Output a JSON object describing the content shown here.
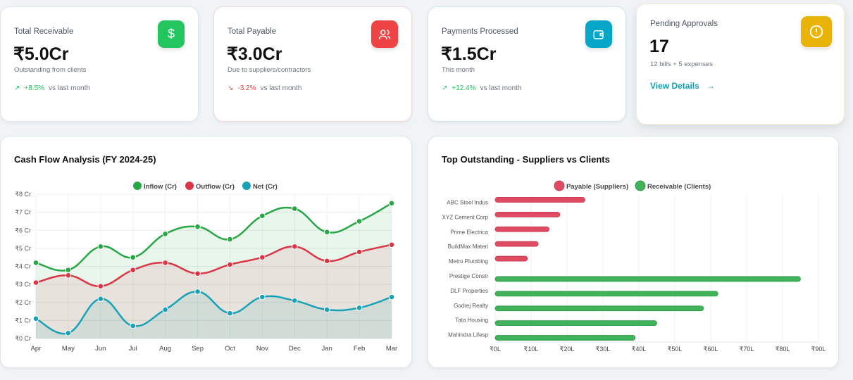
{
  "kpis": [
    {
      "label": "Total Receivable",
      "value": "₹5.0Cr",
      "sub": "Outstanding from clients",
      "change": "+8.5%",
      "change_note": "vs last month",
      "direction": "up",
      "icon": "dollar-icon",
      "color": "#22c55e"
    },
    {
      "label": "Total Payable",
      "value": "₹3.0Cr",
      "sub": "Due to suppliers/contractors",
      "change": "-3.2%",
      "change_note": "vs last month",
      "direction": "down",
      "icon": "users-icon",
      "color": "#ef4444"
    },
    {
      "label": "Payments Processed",
      "value": "₹1.5Cr",
      "sub": "This month",
      "change": "+12.4%",
      "change_note": "vs last month",
      "direction": "up",
      "icon": "wallet-icon",
      "color": "#06a6c8"
    },
    {
      "label": "Pending Approvals",
      "value": "17",
      "sub": "12 bills + 5 expenses",
      "link": "View Details",
      "icon": "alert-circle-icon",
      "color": "#eab308"
    }
  ],
  "chart_data": [
    {
      "type": "line",
      "title": "Cash Flow Analysis (FY 2024-25)",
      "legend_position": "top",
      "grid": true,
      "categories": [
        "Apr",
        "May",
        "Jun",
        "Jul",
        "Aug",
        "Sep",
        "Oct",
        "Nov",
        "Dec",
        "Jan",
        "Feb",
        "Mar"
      ],
      "ylim": [
        0,
        8
      ],
      "yticks": [
        "₹0 Cr",
        "₹1 Cr",
        "₹2 Cr",
        "₹3 Cr",
        "₹4 Cr",
        "₹5 Cr",
        "₹6 Cr",
        "₹7 Cr",
        "₹8 Cr"
      ],
      "series": [
        {
          "name": "Inflow (Cr)",
          "color": "#28a745",
          "values": [
            4.2,
            3.8,
            5.1,
            4.5,
            5.8,
            6.2,
            5.5,
            6.8,
            7.2,
            5.9,
            6.5,
            7.5
          ]
        },
        {
          "name": "Outflow (Cr)",
          "color": "#dc3545",
          "values": [
            3.1,
            3.5,
            2.9,
            3.8,
            4.2,
            3.6,
            4.1,
            4.5,
            5.1,
            4.3,
            4.8,
            5.2
          ]
        },
        {
          "name": "Net (Cr)",
          "color": "#17a2b8",
          "values": [
            1.1,
            0.3,
            2.2,
            0.7,
            1.6,
            2.6,
            1.4,
            2.3,
            2.1,
            1.6,
            1.7,
            2.3
          ]
        }
      ]
    },
    {
      "type": "bar",
      "orientation": "horizontal",
      "title": "Top Outstanding - Suppliers vs Clients",
      "legend_position": "top",
      "grid": true,
      "categories": [
        "ABC Steel Indus",
        "XYZ Cement Corp",
        "Prime Electrica",
        "BuildMax Materi",
        "Metro Plumbing",
        "Prestige Constr",
        "DLF Properties",
        "Godrej Realty",
        "Tata Housing",
        "Mahindra Lifesp"
      ],
      "xlim": [
        0,
        90
      ],
      "xticks": [
        "₹0L",
        "₹10L",
        "₹20L",
        "₹30L",
        "₹40L",
        "₹50L",
        "₹60L",
        "₹70L",
        "₹80L",
        "₹90L"
      ],
      "series": [
        {
          "name": "Payable (Suppliers)",
          "color": "#e04b64",
          "values": [
            25,
            18,
            15,
            12,
            9,
            null,
            null,
            null,
            null,
            null
          ]
        },
        {
          "name": "Receivable (Clients)",
          "color": "#3fb25a",
          "values": [
            null,
            null,
            null,
            null,
            null,
            85,
            62,
            58,
            45,
            39
          ]
        }
      ]
    }
  ]
}
